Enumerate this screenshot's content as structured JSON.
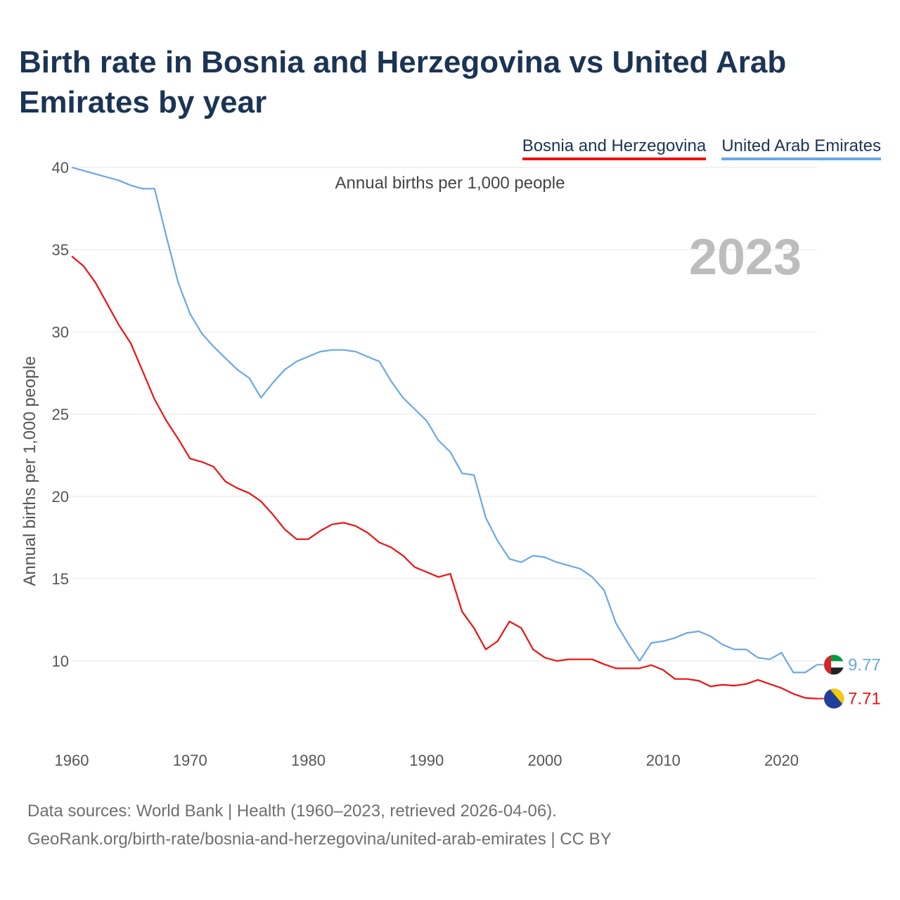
{
  "title": "Birth rate in Bosnia and Herzegovina vs United Arab Emirates by year",
  "legend": [
    {
      "label": "Bosnia and Herzegovina",
      "color": "#ee1111"
    },
    {
      "label": "United Arab Emirates",
      "color": "#6aa8e6"
    }
  ],
  "footer": {
    "line1": "Data sources: World Bank | Health (1960–2023, retrieved 2026-04-06).",
    "line2": "GeoRank.org/birth-rate/bosnia-and-herzegovina/united-arab-emirates | CC BY"
  },
  "chart_data": {
    "type": "line",
    "title": "Birth rate in Bosnia and Herzegovina vs United Arab Emirates by year",
    "subtitle": "Annual births per 1,000 people",
    "xlabel": "",
    "ylabel": "Annual births per 1,000 people",
    "year_watermark": "2023",
    "xlim": [
      1960,
      2023
    ],
    "ylim": [
      5,
      40
    ],
    "xticks": [
      1960,
      1970,
      1980,
      1990,
      2000,
      2010,
      2020
    ],
    "yticks": [
      10,
      15,
      20,
      25,
      30,
      35,
      40
    ],
    "grid": true,
    "legend_position": "top-right",
    "x": [
      1960,
      1961,
      1962,
      1963,
      1964,
      1965,
      1966,
      1967,
      1968,
      1969,
      1970,
      1971,
      1972,
      1973,
      1974,
      1975,
      1976,
      1977,
      1978,
      1979,
      1980,
      1981,
      1982,
      1983,
      1984,
      1985,
      1986,
      1987,
      1988,
      1989,
      1990,
      1991,
      1992,
      1993,
      1994,
      1995,
      1996,
      1997,
      1998,
      1999,
      2000,
      2001,
      2002,
      2003,
      2004,
      2005,
      2006,
      2007,
      2008,
      2009,
      2010,
      2011,
      2012,
      2013,
      2014,
      2015,
      2016,
      2017,
      2018,
      2019,
      2020,
      2021,
      2022,
      2023
    ],
    "series": [
      {
        "name": "Bosnia and Herzegovina",
        "color": "#ee1111",
        "end_label": "7.71",
        "values": [
          34.6,
          34.0,
          33.0,
          31.7,
          30.4,
          29.3,
          27.6,
          25.9,
          24.6,
          23.5,
          22.3,
          22.1,
          21.8,
          20.9,
          20.5,
          20.2,
          19.7,
          18.9,
          18.0,
          17.4,
          17.4,
          17.9,
          18.3,
          18.4,
          18.2,
          17.8,
          17.2,
          16.9,
          16.4,
          15.7,
          15.4,
          15.1,
          15.3,
          13.0,
          12.0,
          10.7,
          11.2,
          12.4,
          12.0,
          10.7,
          10.2,
          10.0,
          10.1,
          10.1,
          10.1,
          9.8,
          9.55,
          9.55,
          9.55,
          9.75,
          9.45,
          8.9,
          8.9,
          8.8,
          8.45,
          8.55,
          8.5,
          8.6,
          8.85,
          8.6,
          8.35,
          8.0,
          7.75,
          7.71
        ]
      },
      {
        "name": "United Arab Emirates",
        "color": "#6aa8e6",
        "end_label": "9.77",
        "values": [
          40.0,
          39.8,
          39.6,
          39.4,
          39.2,
          38.9,
          38.7,
          38.7,
          35.8,
          33.0,
          31.1,
          29.9,
          29.1,
          28.4,
          27.7,
          27.2,
          26.0,
          26.9,
          27.7,
          28.2,
          28.5,
          28.8,
          28.9,
          28.9,
          28.8,
          28.5,
          28.2,
          27.0,
          26.0,
          25.3,
          24.6,
          23.4,
          22.7,
          21.4,
          21.3,
          18.7,
          17.3,
          16.2,
          16.0,
          16.4,
          16.3,
          16.0,
          15.8,
          15.6,
          15.1,
          14.3,
          12.3,
          11.1,
          10.0,
          11.1,
          11.2,
          11.4,
          11.7,
          11.8,
          11.5,
          11.0,
          10.7,
          10.7,
          10.2,
          10.1,
          10.5,
          9.3,
          9.3,
          9.77
        ]
      }
    ]
  }
}
